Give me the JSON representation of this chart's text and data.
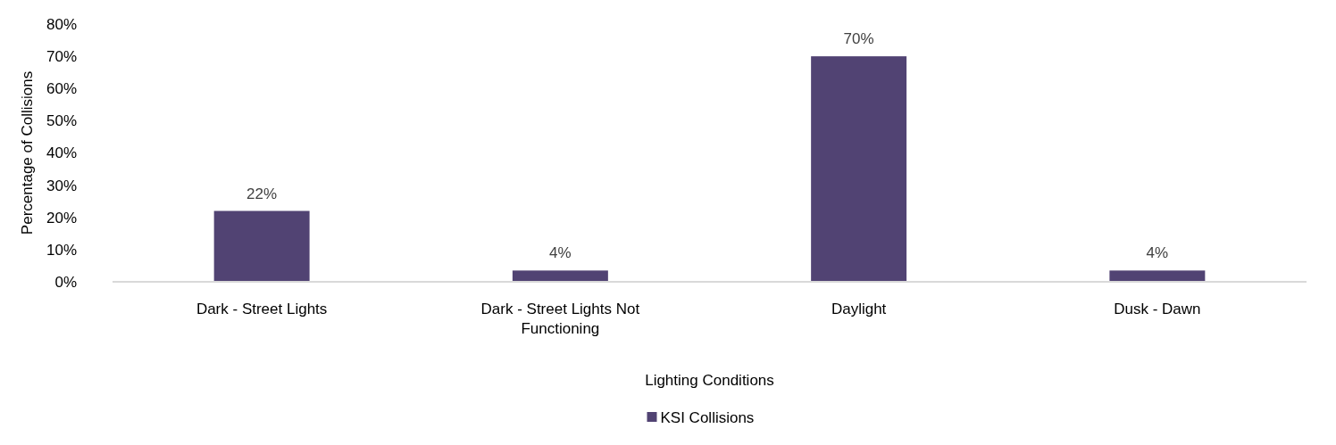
{
  "chart_data": {
    "type": "bar",
    "xlabel": "Lighting Conditions",
    "ylabel": "Percentage of Collisions",
    "categories": [
      "Dark - Street Lights",
      "Dark - Street Lights Not Functioning",
      "Daylight",
      "Dusk - Dawn"
    ],
    "series": [
      {
        "name": "KSI Collisions",
        "color": "#514373",
        "values": [
          22,
          3.5,
          70,
          3.5
        ],
        "value_labels": [
          "22%",
          "4%",
          "70%",
          "4%"
        ]
      }
    ],
    "ylim": [
      0,
      80
    ],
    "yticks": [
      {
        "value": 0,
        "label": "0%"
      },
      {
        "value": 10,
        "label": "10%"
      },
      {
        "value": 20,
        "label": "20%"
      },
      {
        "value": 30,
        "label": "30%"
      },
      {
        "value": 40,
        "label": "40%"
      },
      {
        "value": 50,
        "label": "50%"
      },
      {
        "value": 60,
        "label": "60%"
      },
      {
        "value": 70,
        "label": "70%"
      },
      {
        "value": 80,
        "label": "80%"
      }
    ],
    "grid": false,
    "legend": "bottom"
  }
}
